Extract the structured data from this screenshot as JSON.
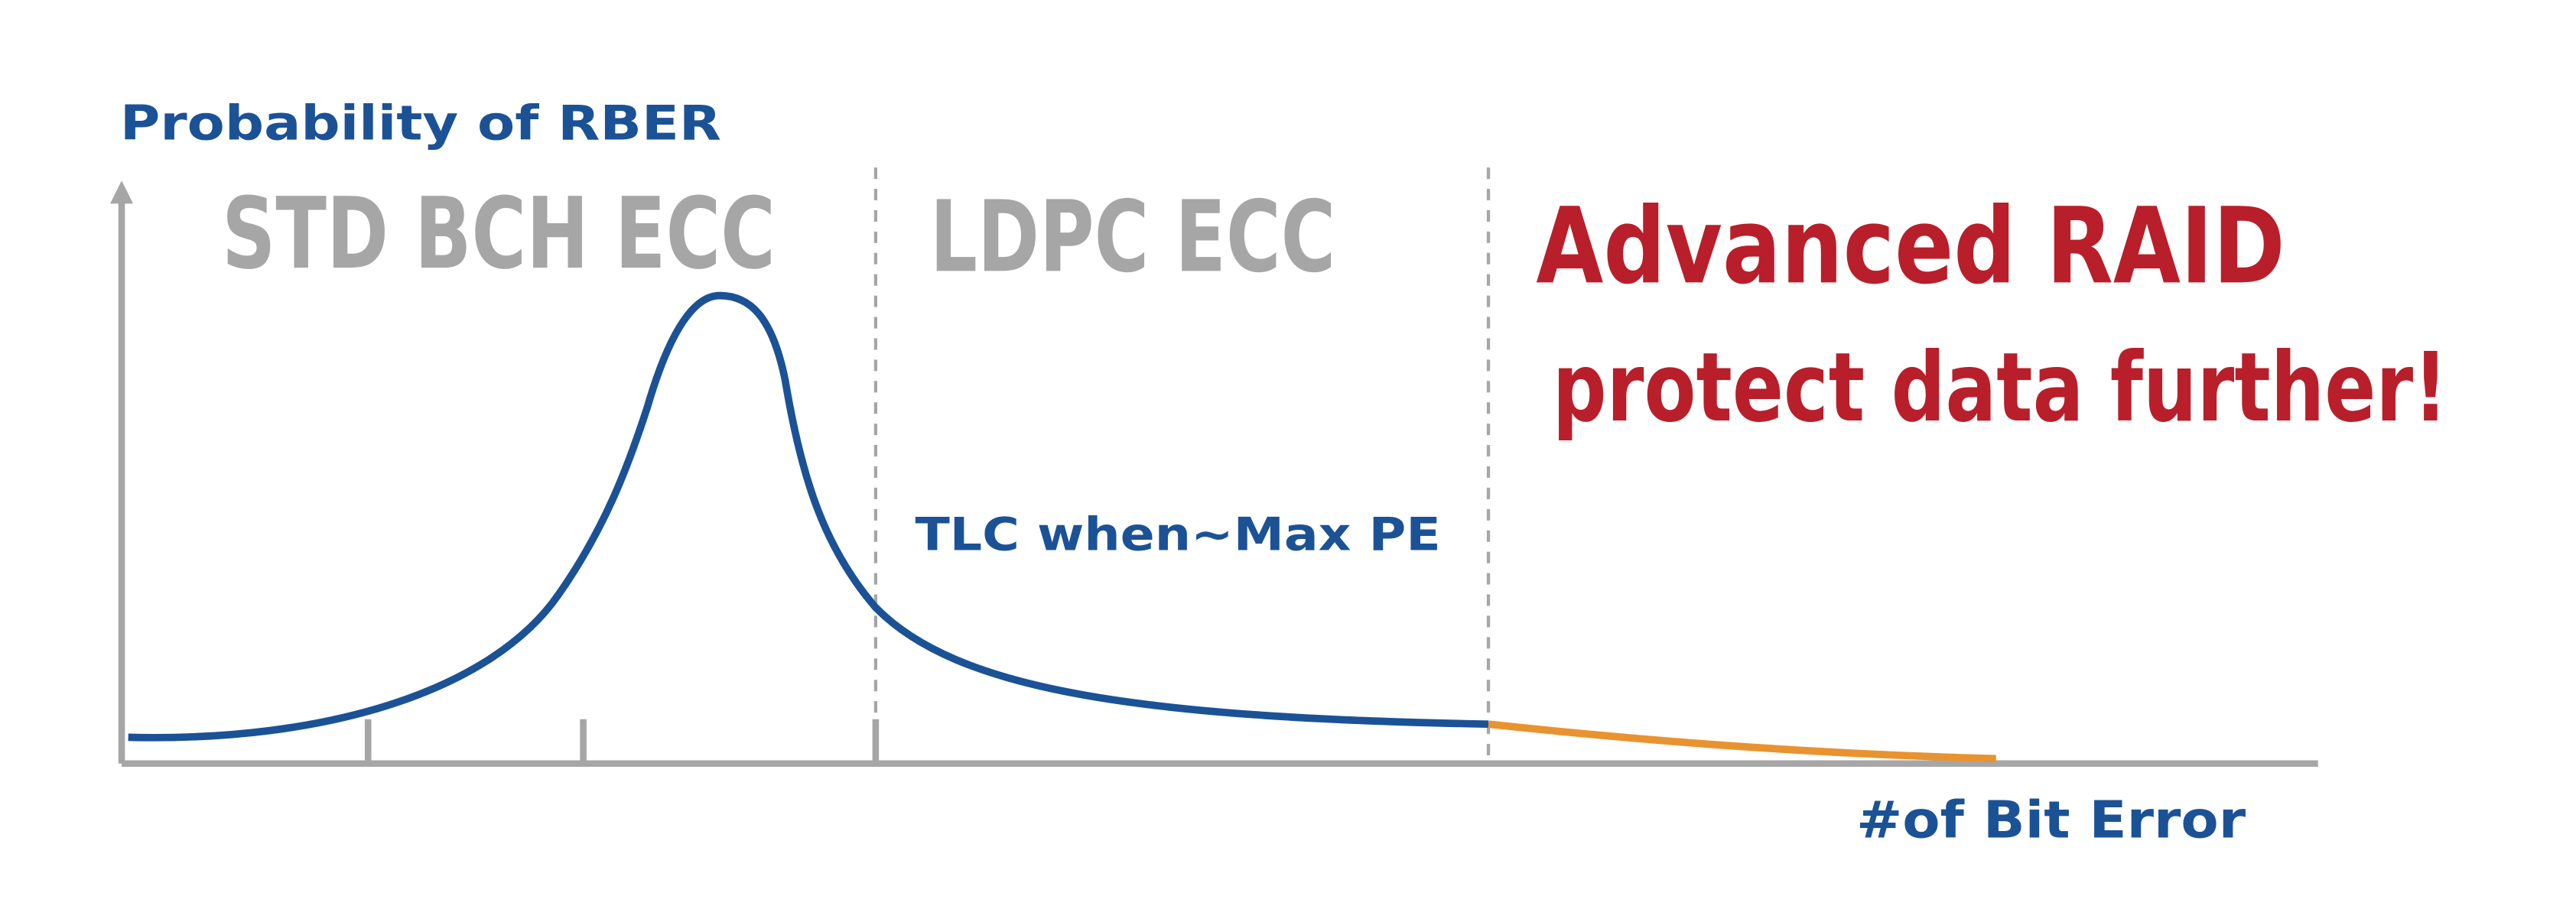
{
  "y_axis_label": "Probability of RBER",
  "x_axis_label": "#of Bit Error",
  "regions": [
    "STD BCH ECC",
    "LDPC ECC"
  ],
  "headline": "Advanced RAID",
  "subline": "protect data further!",
  "curve_label": "TLC when~Max PE"
}
